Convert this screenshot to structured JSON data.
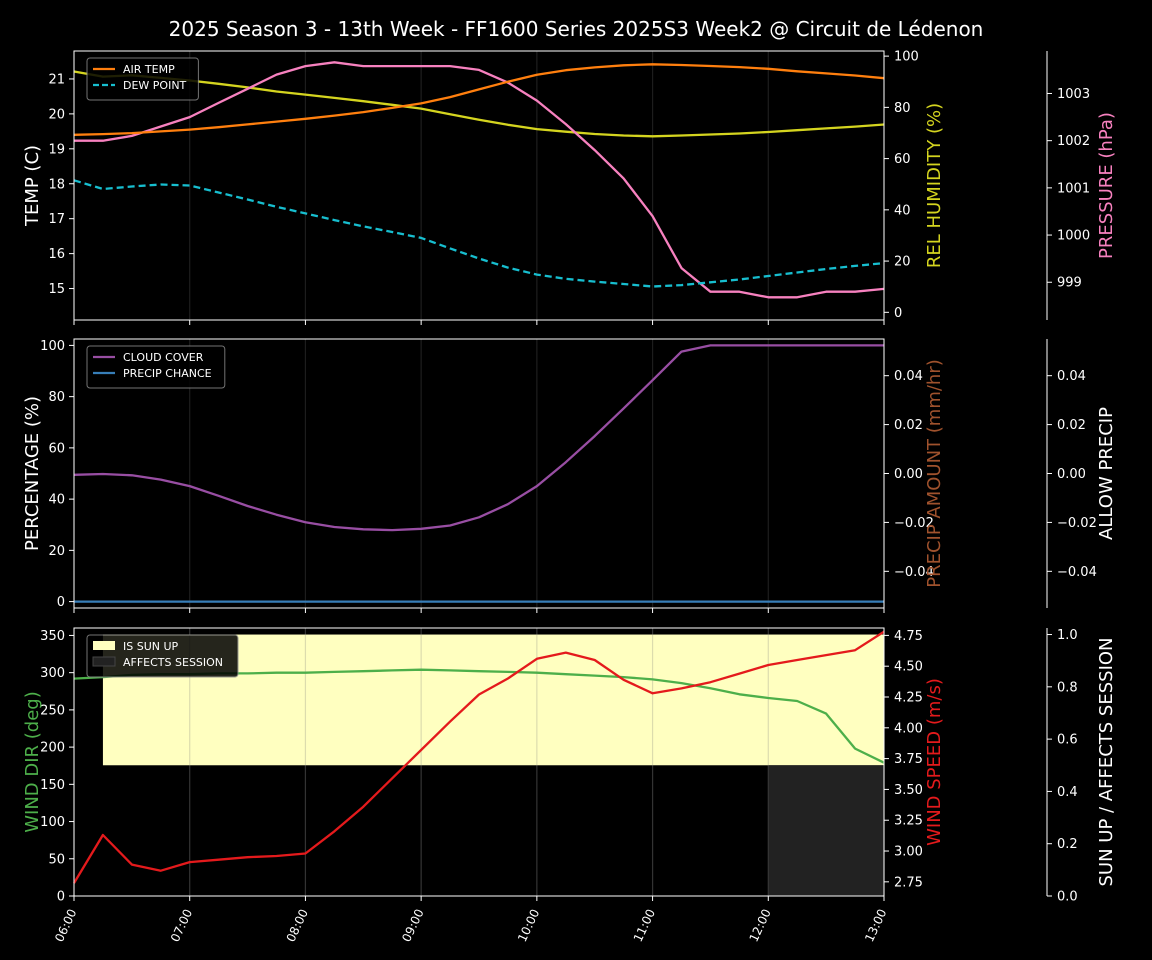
{
  "title": "2025 Season 3 - 13th Week - FF1600 Series 2025S3 Week2 @ Circuit de Lédenon",
  "x_ticks": [
    "06:00",
    "07:00",
    "08:00",
    "09:00",
    "10:00",
    "11:00",
    "12:00",
    "13:00"
  ],
  "colors": {
    "air_temp": "#ff7f0e",
    "dew_point": "#17becf",
    "humidity": "#d4d41f",
    "pressure": "#f781bf",
    "cloud": "#984ea3",
    "precip_chance": "#377eb8",
    "sun_up": "#ffffc0",
    "affects": "#222222",
    "wind_dir": "#4daf4a",
    "wind_speed": "#e41a1c"
  },
  "chart_data": [
    {
      "type": "line",
      "panel": "temperature",
      "x_unit": "hours",
      "xlim": [
        6,
        13
      ],
      "axes": {
        "left": {
          "label": "TEMP (C)",
          "range": [
            14.1,
            21.8
          ],
          "ticks": [
            "15",
            "16",
            "17",
            "18",
            "19",
            "20",
            "21"
          ]
        },
        "right1": {
          "label": "REL HUMIDITY (%)",
          "range": [
            -3,
            102
          ],
          "ticks": [
            "0",
            "20",
            "40",
            "60",
            "80",
            "100"
          ]
        },
        "right2": {
          "label": "PRESSURE (hPa)",
          "range": [
            998.2,
            1003.9
          ],
          "ticks": [
            "999",
            "1000",
            "1001",
            "1002",
            "1003"
          ]
        }
      },
      "legend": {
        "position": "top-left",
        "entries": [
          "AIR TEMP",
          "DEW POINT"
        ]
      },
      "series": [
        {
          "name": "AIR TEMP",
          "axis": "left",
          "x": [
            6,
            6.25,
            6.5,
            6.75,
            7,
            7.25,
            7.5,
            7.75,
            8,
            8.25,
            8.5,
            8.75,
            9,
            9.25,
            9.5,
            9.75,
            10,
            10.25,
            10.5,
            10.75,
            11,
            11.25,
            11.5,
            11.75,
            12,
            12.25,
            12.5,
            12.75,
            13
          ],
          "values": [
            19.4,
            19.42,
            19.45,
            19.5,
            19.55,
            19.62,
            19.7,
            19.78,
            19.86,
            19.95,
            20.05,
            20.17,
            20.3,
            20.48,
            20.7,
            20.92,
            21.12,
            21.25,
            21.33,
            21.39,
            21.42,
            21.4,
            21.37,
            21.34,
            21.29,
            21.22,
            21.16,
            21.1,
            21.02
          ]
        },
        {
          "name": "DEW POINT",
          "axis": "left",
          "x": [
            6,
            6.25,
            6.5,
            6.75,
            7,
            7.25,
            7.5,
            7.75,
            8,
            8.25,
            8.5,
            8.75,
            9,
            9.25,
            9.5,
            9.75,
            10,
            10.25,
            10.5,
            10.75,
            11,
            11.25,
            11.5,
            11.75,
            12,
            12.25,
            12.5,
            12.75,
            13
          ],
          "values": [
            18.1,
            17.85,
            17.92,
            17.98,
            17.95,
            17.75,
            17.55,
            17.34,
            17.15,
            16.96,
            16.78,
            16.62,
            16.45,
            16.15,
            15.86,
            15.6,
            15.4,
            15.28,
            15.2,
            15.13,
            15.06,
            15.1,
            15.18,
            15.26,
            15.36,
            15.46,
            15.56,
            15.65,
            15.73
          ]
        },
        {
          "name": "REL HUMIDITY",
          "axis": "right1",
          "x": [
            6,
            6.25,
            6.5,
            6.75,
            7,
            7.25,
            7.5,
            7.75,
            8,
            8.25,
            8.5,
            8.75,
            9,
            9.25,
            9.5,
            9.75,
            10,
            10.25,
            10.5,
            10.75,
            11,
            11.25,
            11.5,
            11.75,
            12,
            12.25,
            12.5,
            12.75,
            13
          ],
          "values": [
            94,
            92,
            92.5,
            91.5,
            90.5,
            89.2,
            87.8,
            86.2,
            85,
            83.7,
            82.4,
            81,
            79.5,
            77.3,
            75.2,
            73.2,
            71.5,
            70.5,
            69.6,
            69,
            68.7,
            69,
            69.4,
            69.8,
            70.4,
            71.1,
            71.8,
            72.5,
            73.3
          ]
        },
        {
          "name": "PRESSURE",
          "axis": "right2",
          "x": [
            6,
            6.25,
            6.5,
            6.75,
            7,
            7.25,
            7.5,
            7.75,
            8,
            8.25,
            8.5,
            8.75,
            9,
            9.25,
            9.5,
            9.75,
            10,
            10.25,
            10.5,
            10.75,
            11,
            11.25,
            11.5,
            11.75,
            12,
            12.25,
            12.5,
            12.75,
            13
          ],
          "values": [
            1002,
            1002,
            1002.1,
            1002.3,
            1002.5,
            1002.8,
            1003.1,
            1003.4,
            1003.58,
            1003.66,
            1003.58,
            1003.58,
            1003.58,
            1003.58,
            1003.5,
            1003.23,
            1002.85,
            1002.35,
            1001.8,
            1001.2,
            1000.4,
            999.3,
            998.8,
            998.8,
            998.68,
            998.68,
            998.8,
            998.8,
            998.86
          ]
        }
      ]
    },
    {
      "type": "line",
      "panel": "clouds",
      "x_unit": "hours",
      "xlim": [
        6,
        13
      ],
      "axes": {
        "left": {
          "label": "PERCENTAGE (%)",
          "range": [
            -2.5,
            102.5
          ],
          "ticks": [
            "0",
            "20",
            "40",
            "60",
            "80",
            "100"
          ]
        },
        "right1": {
          "label": "PRECIP AMOUNT (mm/hr)",
          "range": [
            -0.055,
            0.055
          ],
          "ticks": [
            "−0.04",
            "−0.02",
            "0.00",
            "0.02",
            "0.04"
          ]
        },
        "right2": {
          "label": "ALLOW PRECIP",
          "range": [
            -0.055,
            0.055
          ],
          "ticks": [
            "−0.04",
            "−0.02",
            "0.00",
            "0.02",
            "0.04"
          ]
        }
      },
      "legend": {
        "position": "top-left",
        "entries": [
          "CLOUD COVER",
          "PRECIP CHANCE"
        ]
      },
      "series": [
        {
          "name": "CLOUD COVER",
          "x": [
            6,
            6.25,
            6.5,
            6.75,
            7,
            7.25,
            7.5,
            7.75,
            8,
            8.25,
            8.5,
            8.75,
            9,
            9.25,
            9.5,
            9.75,
            10,
            10.25,
            10.5,
            10.75,
            11,
            11.25,
            11.5,
            11.75,
            12,
            12.25,
            12.5,
            12.75,
            13
          ],
          "values": [
            49.5,
            49.8,
            49.3,
            47.6,
            45.1,
            41.3,
            37.3,
            33.9,
            31,
            29.1,
            28.2,
            27.9,
            28.4,
            29.7,
            32.9,
            38,
            45.1,
            54.4,
            64.6,
            75.4,
            86.4,
            97.6,
            100,
            100,
            100,
            100,
            100,
            100,
            100
          ]
        },
        {
          "name": "PRECIP CHANCE",
          "x": [
            6,
            13
          ],
          "values": [
            0,
            0
          ]
        }
      ]
    },
    {
      "type": "line",
      "panel": "wind",
      "x_unit": "hours",
      "xlim": [
        6,
        13
      ],
      "axes": {
        "left": {
          "label": "WIND DIR (deg)",
          "range": [
            0,
            360
          ],
          "ticks": [
            "0",
            "50",
            "100",
            "150",
            "200",
            "250",
            "300",
            "350"
          ]
        },
        "right1": {
          "label": "WIND SPEED (m/s)",
          "range": [
            2.635,
            4.81
          ],
          "ticks": [
            "2.75",
            "3.00",
            "3.25",
            "3.50",
            "3.75",
            "4.00",
            "4.25",
            "4.50",
            "4.75"
          ]
        },
        "right2": {
          "label": "SUN UP / AFFECTS SESSION",
          "range": [
            0,
            1.025
          ],
          "ticks": [
            "0.0",
            "0.2",
            "0.4",
            "0.6",
            "0.8",
            "1.0"
          ]
        }
      },
      "legend": {
        "position": "top-left",
        "entries": [
          "IS SUN UP",
          "AFFECTS SESSION"
        ]
      },
      "bands": [
        {
          "name": "IS SUN UP",
          "x_start": 6.25,
          "x_end": 13,
          "from": 0.5,
          "to": 1.0
        },
        {
          "name": "AFFECTS SESSION",
          "x_start": 12,
          "x_end": 13,
          "from": 0,
          "to": 0.5
        }
      ],
      "series": [
        {
          "name": "WIND DIR",
          "axis": "left",
          "x": [
            6,
            6.25,
            6.5,
            6.75,
            7,
            7.25,
            7.5,
            7.75,
            8,
            8.25,
            8.5,
            8.75,
            9,
            9.25,
            9.5,
            9.75,
            10,
            10.25,
            10.5,
            10.75,
            11,
            11.25,
            11.5,
            11.75,
            12,
            12.25,
            12.5,
            12.75,
            13
          ],
          "values": [
            292,
            294,
            297,
            298,
            298,
            299,
            299,
            300,
            300,
            301,
            302,
            303,
            304,
            303,
            302,
            301,
            300,
            298,
            296,
            294,
            291,
            286,
            279,
            271,
            266,
            262,
            245,
            198,
            179
          ]
        },
        {
          "name": "WIND SPEED",
          "axis": "right1",
          "x": [
            6,
            6.25,
            6.5,
            6.75,
            7,
            7.25,
            7.5,
            7.75,
            8,
            8.25,
            8.5,
            8.75,
            9,
            9.25,
            9.5,
            9.75,
            10,
            10.25,
            10.5,
            10.75,
            11,
            11.25,
            11.5,
            11.75,
            12,
            12.25,
            12.5,
            12.75,
            13
          ],
          "values": [
            2.74,
            3.13,
            2.89,
            2.84,
            2.91,
            2.93,
            2.95,
            2.96,
            2.98,
            3.16,
            3.36,
            3.59,
            3.82,
            4.05,
            4.27,
            4.4,
            4.56,
            4.61,
            4.55,
            4.39,
            4.28,
            4.32,
            4.37,
            4.44,
            4.51,
            4.55,
            4.59,
            4.63,
            4.78
          ]
        }
      ]
    }
  ]
}
